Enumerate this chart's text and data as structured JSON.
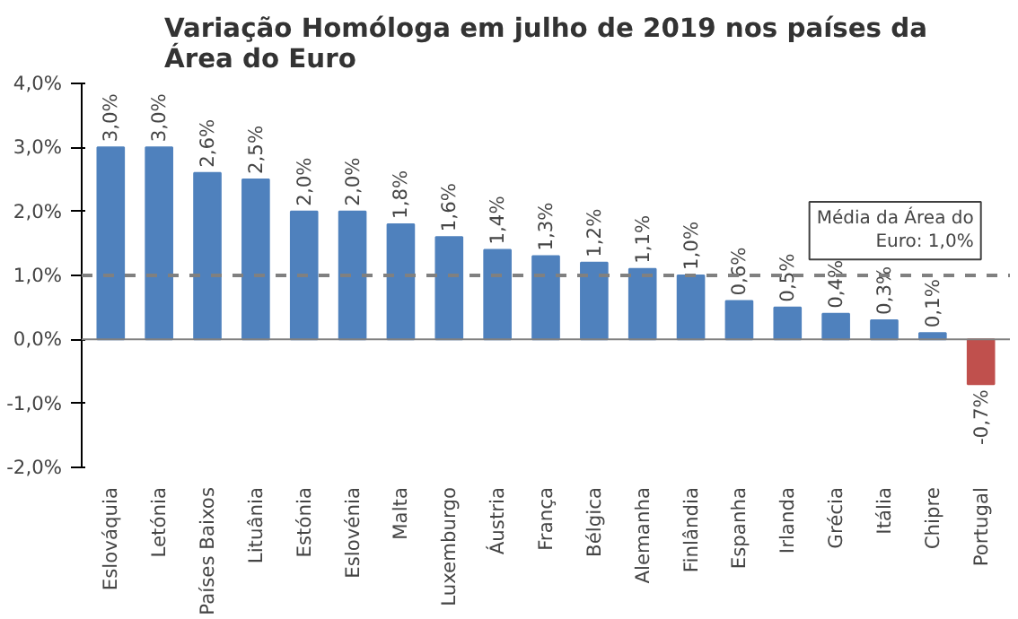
{
  "chart_data": {
    "type": "bar",
    "title": "Variação Homóloga em julho de 2019 nos países da Área do Euro",
    "categories": [
      "Eslováquia",
      "Letónia",
      "Países Baixos",
      "Lituânia",
      "Estónia",
      "Eslovénia",
      "Malta",
      "Luxemburgo",
      "Áustria",
      "França",
      "Bélgica",
      "Alemanha",
      "Finlândia",
      "Espanha",
      "Irlanda",
      "Grécia",
      "Itália",
      "Chipre",
      "Portugal"
    ],
    "values": [
      3.0,
      3.0,
      2.6,
      2.5,
      2.0,
      2.0,
      1.8,
      1.6,
      1.4,
      1.3,
      1.2,
      1.1,
      1.0,
      0.6,
      0.5,
      0.4,
      0.3,
      0.1,
      -0.7
    ],
    "colors": [
      "#4f81bd",
      "#4f81bd",
      "#4f81bd",
      "#4f81bd",
      "#4f81bd",
      "#4f81bd",
      "#4f81bd",
      "#4f81bd",
      "#4f81bd",
      "#4f81bd",
      "#4f81bd",
      "#4f81bd",
      "#4f81bd",
      "#4f81bd",
      "#4f81bd",
      "#4f81bd",
      "#4f81bd",
      "#4f81bd",
      "#c0504d"
    ],
    "value_labels": [
      "3,0%",
      "3,0%",
      "2,6%",
      "2,5%",
      "2,0%",
      "2,0%",
      "1,8%",
      "1,6%",
      "1,4%",
      "1,3%",
      "1,2%",
      "1,1%",
      "1,0%",
      "0,6%",
      "0,5%",
      "0,4%",
      "0,3%",
      "0,1%",
      "-0,7%"
    ],
    "ylim": [
      -2,
      4
    ],
    "yticks": [
      {
        "value": -2,
        "label": "-2,0%"
      },
      {
        "value": -1,
        "label": "-1,0%"
      },
      {
        "value": 0,
        "label": "0,0%"
      },
      {
        "value": 1,
        "label": "1,0%"
      },
      {
        "value": 2,
        "label": "2,0%"
      },
      {
        "value": 3,
        "label": "3,0%"
      },
      {
        "value": 4,
        "label": "4,0%"
      }
    ],
    "ref_lines": [
      {
        "axis": "y",
        "value": 1.0,
        "label": "Média da Área do Euro: 1,0%",
        "color": "#808080",
        "line_style": "dashed"
      }
    ],
    "grid": false
  }
}
